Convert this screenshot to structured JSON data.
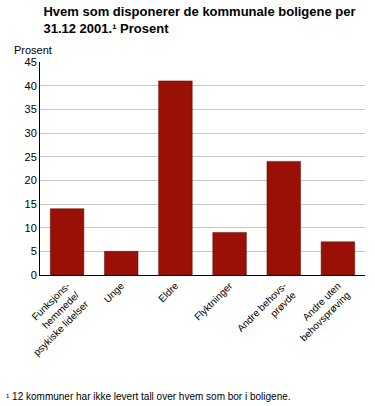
{
  "chart_data": {
    "type": "bar",
    "title": "Hvem som disponerer de kommunale boligene per\n31.12 2001.¹ Prosent",
    "ylabel": "Prosent",
    "categories": [
      "Funksjons-\nhemmede/\npsykiske lidelser",
      "Unge",
      "Eldre",
      "Flyktninger",
      "Andre behovs-\nprøvde",
      "Andre uten\nbehovsprøving"
    ],
    "values": [
      14,
      5,
      41,
      9,
      24,
      7
    ],
    "color": "#9b1006",
    "ylim": [
      0,
      45
    ],
    "yticks": [
      0,
      5,
      10,
      15,
      20,
      25,
      30,
      35,
      40,
      45
    ],
    "grid": true,
    "annotations": [
      "¹ 12 kommuner har ikke levert tall over hvem som bor i boligene."
    ]
  }
}
